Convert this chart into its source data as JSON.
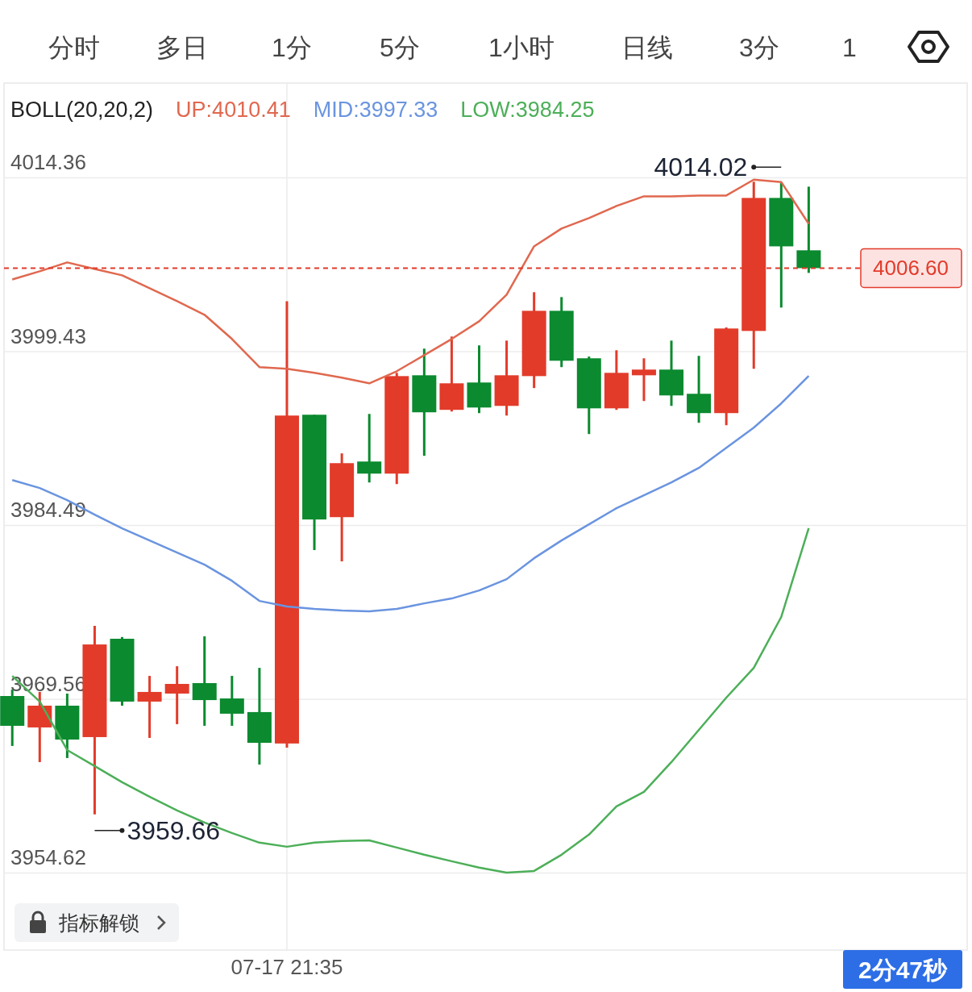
{
  "chart_data": {
    "type": "candlestick",
    "legend_title": "BOLL(20,20,2)",
    "legend": "top",
    "grid": true,
    "categories": [
      null,
      null,
      null,
      null,
      null,
      null,
      null,
      null,
      null,
      null,
      "07-17 21:35",
      null,
      null,
      null,
      null,
      null,
      null,
      null,
      null,
      null,
      null,
      null,
      null,
      null,
      null,
      null,
      null,
      null,
      null,
      null
    ],
    "ohlc": [
      [
        3969.83,
        3970.38,
        3965.54,
        3967.27
      ],
      [
        3967.13,
        3970.18,
        3964.15,
        3969.0
      ],
      [
        3969.0,
        3970.04,
        3964.5,
        3966.09
      ],
      [
        3966.3,
        3975.86,
        3959.66,
        3974.26
      ],
      [
        3974.75,
        3974.9,
        3969.0,
        3969.35
      ],
      [
        3969.35,
        3971.56,
        3966.23,
        3970.18
      ],
      [
        3970.04,
        3972.39,
        3967.41,
        3970.87
      ],
      [
        3970.94,
        3974.96,
        3967.27,
        3969.48
      ],
      [
        3969.62,
        3971.56,
        3967.27,
        3968.31
      ],
      [
        3968.45,
        3972.25,
        3963.94,
        3965.81
      ],
      [
        3965.75,
        4003.76,
        3965.4,
        3993.93
      ],
      [
        3994.0,
        3994.0,
        3982.37,
        3985.0
      ],
      [
        3985.2,
        3990.68,
        3981.4,
        3989.84
      ],
      [
        3989.98,
        3994.07,
        3988.18,
        3988.94
      ],
      [
        3988.94,
        3997.6,
        3988.04,
        3997.32
      ],
      [
        3997.39,
        3999.68,
        3990.47,
        3994.21
      ],
      [
        3994.42,
        4000.72,
        3994.28,
        3996.7
      ],
      [
        3996.77,
        3999.96,
        3994.14,
        3994.62
      ],
      [
        3994.76,
        4000.37,
        3993.93,
        3997.39
      ],
      [
        3997.32,
        4004.53,
        3996.29,
        4002.93
      ],
      [
        4002.93,
        4004.11,
        3998.09,
        3998.64
      ],
      [
        3998.85,
        3999.0,
        3992.34,
        3994.55
      ],
      [
        3994.55,
        3999.54,
        3994.42,
        3997.6
      ],
      [
        3997.39,
        3998.85,
        3995.18,
        3997.88
      ],
      [
        3997.88,
        4000.37,
        3994.76,
        3995.66
      ],
      [
        3995.8,
        3999.06,
        3993.31,
        3994.14
      ],
      [
        3994.14,
        4001.5,
        3993.1,
        4001.41
      ],
      [
        4001.2,
        4014.02,
        3997.95,
        4012.63
      ],
      [
        4012.63,
        4013.9,
        4003.21,
        4008.47
      ],
      [
        4008.13,
        4013.6,
        4006.19,
        4006.6
      ]
    ],
    "colors": [
      "#0b8a2f",
      "#e23b2a",
      "#0b8a2f",
      "#e23b2a",
      "#0b8a2f",
      "#e23b2a",
      "#e23b2a",
      "#0b8a2f",
      "#0b8a2f",
      "#0b8a2f",
      "#e23b2a",
      "#0b8a2f",
      "#e23b2a",
      "#0b8a2f",
      "#e23b2a",
      "#0b8a2f",
      "#e23b2a",
      "#0b8a2f",
      "#e23b2a",
      "#e23b2a",
      "#0b8a2f",
      "#0b8a2f",
      "#e23b2a",
      "#e23b2a",
      "#0b8a2f",
      "#0b8a2f",
      "#e23b2a",
      "#e23b2a",
      "#0b8a2f",
      "#0b8a2f"
    ],
    "series": [
      {
        "name": "UP:4010.41",
        "type": "line",
        "color": "#e0684f",
        "values": [
          4005.63,
          4006.33,
          4007.09,
          4006.53,
          4005.98,
          4004.87,
          4003.76,
          4002.59,
          4000.51,
          3998.09,
          3997.95,
          3997.6,
          3997.19,
          3996.7,
          3997.74,
          3999.12,
          4000.51,
          4002.03,
          4004.32,
          4008.47,
          4010.0,
          4010.9,
          4011.94,
          4012.77,
          4012.77,
          4012.84,
          4012.84,
          4014.2,
          4014.0,
          4010.41
        ]
      },
      {
        "name": "MID:3997.33",
        "type": "line",
        "color": "#6a94e0",
        "values": [
          3988.39,
          3987.7,
          3986.66,
          3985.41,
          3984.24,
          3983.2,
          3982.16,
          3981.12,
          3979.73,
          3978.0,
          3977.52,
          3977.31,
          3977.17,
          3977.1,
          3977.31,
          3977.79,
          3978.21,
          3978.9,
          3979.87,
          3981.67,
          3983.2,
          3984.58,
          3985.97,
          3987.07,
          3988.18,
          3989.43,
          3991.16,
          3992.89,
          3994.97,
          3997.33
        ]
      },
      {
        "name": "LOW:3984.25",
        "type": "line",
        "color": "#4caf58",
        "values": [
          3971.56,
          3969.35,
          3965.19,
          3963.81,
          3962.42,
          3961.17,
          3960.0,
          3958.96,
          3958.06,
          3957.23,
          3956.88,
          3957.23,
          3957.37,
          3957.43,
          3956.81,
          3956.19,
          3955.63,
          3955.08,
          3954.66,
          3954.8,
          3956.19,
          3957.92,
          3960.34,
          3961.59,
          3964.15,
          3966.92,
          3969.69,
          3972.25,
          3976.62,
          3984.25
        ]
      }
    ],
    "ylim": [
      3948,
      4022.5
    ],
    "yticks": [
      3954.62,
      3969.56,
      3984.49,
      3999.43,
      4014.36
    ],
    "ref_lines": [
      {
        "axis": "y",
        "value": 4006.6,
        "label": "4006.60",
        "color": "#e23b2a",
        "line_style": "dashed"
      }
    ],
    "annotations": [
      "分时",
      "多日",
      "1分",
      "5分",
      "1小时",
      "日线",
      "3分",
      "1",
      "指标解锁",
      "2分47秒",
      "4014.02",
      "3959.66"
    ]
  }
}
